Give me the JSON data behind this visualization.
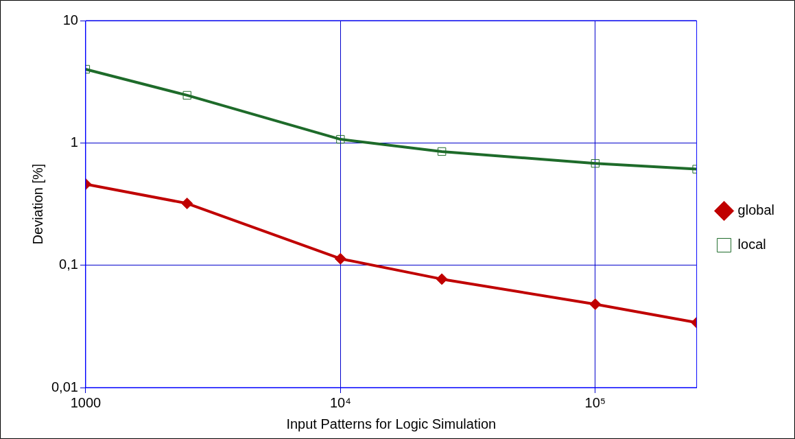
{
  "chart_data": {
    "type": "line",
    "xlabel": "Input Patterns for Logic Simulation",
    "ylabel": "Deviation [%]",
    "x": [
      1000,
      2500,
      10000,
      25000,
      100000,
      250000
    ],
    "series": [
      {
        "name": "global",
        "color": "#c00000",
        "marker": "diamond",
        "values": [
          0.46,
          0.32,
          0.113,
          0.077,
          0.048,
          0.034
        ]
      },
      {
        "name": "local",
        "color": "#1e6b2a",
        "marker": "square",
        "values": [
          4.0,
          2.45,
          1.07,
          0.85,
          0.68,
          0.61
        ]
      }
    ],
    "log": "xy",
    "xlim": [
      1000,
      250000
    ],
    "ylim": [
      0.01,
      10
    ],
    "xticks": [
      1000,
      {
        "value": 10000,
        "label": "10⁴"
      },
      {
        "value": 100000,
        "label": "10⁵"
      }
    ],
    "yticks": [
      {
        "value": 0.01,
        "label": "0,01"
      },
      {
        "value": 0.1,
        "label": "0,1"
      },
      1,
      10
    ],
    "grid": true,
    "legend": "right",
    "line_style": "solid"
  }
}
